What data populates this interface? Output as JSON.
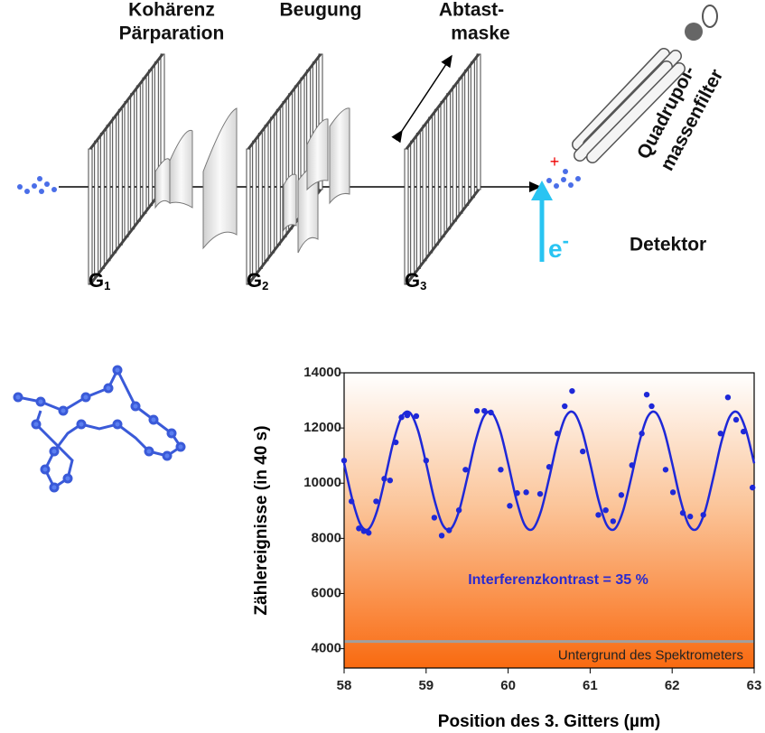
{
  "diagram": {
    "labels": [
      "Kohärenz",
      "Pärparation",
      "Beugung",
      "Abtast-",
      "maske",
      "Quadrupol-",
      "massenfilter",
      "Detektor"
    ],
    "gratings": [
      {
        "letter": "G",
        "sub": "1"
      },
      {
        "letter": "G",
        "sub": "2"
      },
      {
        "letter": "G",
        "sub": "3"
      }
    ],
    "electron": {
      "letter": "e",
      "sup": "-"
    },
    "charge": "+"
  },
  "chart_data": {
    "type": "scatter",
    "x_label": "Position des 3. Gitters (µm)",
    "y_label": "Zählereignisse (in 40 s)",
    "annotation": "Interferenzkontrast = 35 %",
    "background_label": "Untergrund des Spektrometers",
    "background_level": 4260,
    "background_color": "#a0a0a0",
    "xlim": [
      58,
      63
    ],
    "ylim": [
      3300,
      14000
    ],
    "xticks": [
      58,
      59,
      60,
      61,
      62,
      63
    ],
    "yticks": [
      4000,
      6000,
      8000,
      10000,
      12000,
      14000
    ],
    "series": [
      {
        "name": null,
        "color": "#1e28d8",
        "mode": "markers",
        "x": [
          58.0,
          58.09,
          58.18,
          58.24,
          58.3,
          58.39,
          58.49,
          58.56,
          58.63,
          58.7,
          58.77,
          58.88,
          59.0,
          59.1,
          59.19,
          59.28,
          59.4,
          59.48,
          59.62,
          59.71,
          59.79,
          59.91,
          60.02,
          60.11,
          60.22,
          60.39,
          60.5,
          60.6,
          60.69,
          60.78,
          60.91,
          61.1,
          61.19,
          61.28,
          61.38,
          61.51,
          61.63,
          61.69,
          61.75,
          61.92,
          62.01,
          62.13,
          62.22,
          62.38,
          62.59,
          62.68,
          62.78,
          62.87,
          62.98
        ],
        "values": [
          10820,
          9340,
          8360,
          8260,
          8200,
          9340,
          10160,
          10100,
          11480,
          12390,
          12460,
          12430,
          10820,
          8750,
          8100,
          8290,
          9020,
          10490,
          12620,
          12620,
          12560,
          10490,
          9180,
          9640,
          9670,
          9610,
          10590,
          11800,
          12790,
          13340,
          11150,
          8850,
          9020,
          8620,
          9570,
          10650,
          11800,
          13210,
          12790,
          10490,
          9670,
          8920,
          8790,
          8850,
          11800,
          13110,
          12300,
          11870,
          9840
        ]
      },
      {
        "name": null,
        "color": "#1e28d8",
        "mode": "line",
        "x": [
          58.0,
          58.1,
          58.2,
          58.3,
          58.4,
          58.5,
          58.6,
          58.7,
          58.8,
          58.9,
          59.0,
          59.1,
          59.2,
          59.3,
          59.4,
          59.5,
          59.6,
          59.7,
          59.8,
          59.9,
          60.0,
          60.1,
          60.2,
          60.3,
          60.4,
          60.5,
          60.6,
          60.7,
          60.8,
          60.9,
          61.0,
          61.1,
          61.2,
          61.3,
          61.4,
          61.5,
          61.6,
          61.7,
          61.8,
          61.9,
          62.0,
          62.1,
          62.2,
          62.3,
          62.4,
          62.5,
          62.6,
          62.7,
          62.8,
          62.9,
          63.0
        ],
        "values": [
          10720,
          9410,
          8500,
          8340,
          8980,
          10180,
          11490,
          12400,
          12560,
          11920,
          10720,
          9410,
          8500,
          8340,
          8980,
          10180,
          11490,
          12400,
          12560,
          11920,
          10720,
          9410,
          8500,
          8340,
          8980,
          10180,
          11490,
          12400,
          12560,
          11920,
          10720,
          9410,
          8500,
          8340,
          8980,
          10180,
          11490,
          12400,
          12560,
          11920,
          10720,
          9410,
          8500,
          8340,
          8980,
          10180,
          11490,
          12400,
          12560,
          11920,
          10720
        ]
      }
    ]
  }
}
